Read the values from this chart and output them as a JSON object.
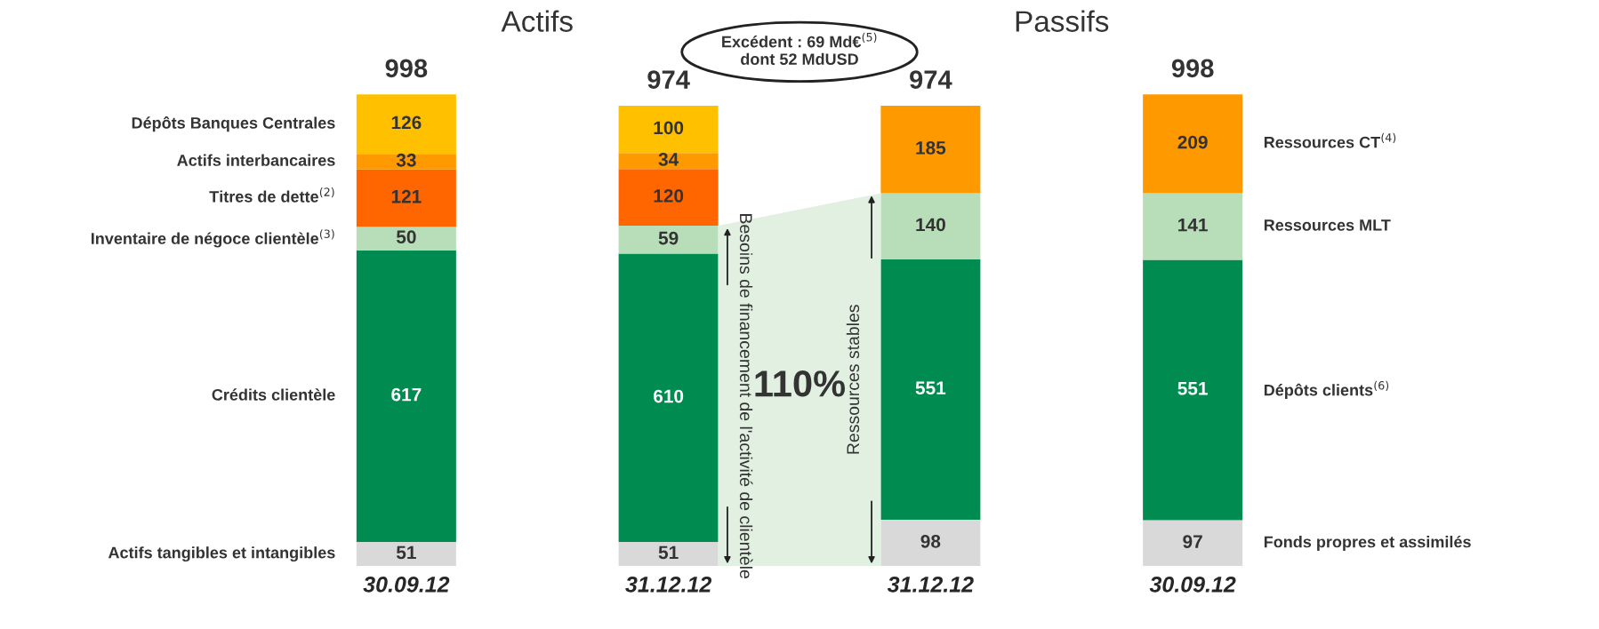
{
  "chart_data": {
    "type": "bar",
    "stacked": true,
    "data_labels": true,
    "categories": [
      "30.09.12",
      "31.12.12",
      "31.12.12",
      "30.09.12"
    ],
    "series": [
      {
        "name": "Actifs tangibles et intangibles",
        "color": "#d9d9d9",
        "values": [
          51,
          51,
          null,
          null
        ]
      },
      {
        "name": "Crédits clientèle",
        "color": "#008c50",
        "values": [
          617,
          610,
          null,
          null
        ]
      },
      {
        "name": "Inventaire de négoce clientèle$^{(3)}$",
        "color": "#b7deb8",
        "values": [
          50,
          59,
          null,
          null
        ]
      },
      {
        "name": "Titres de dette$^{(2)}$",
        "color": "#ff6600",
        "values": [
          121,
          120,
          null,
          null
        ]
      },
      {
        "name": "Actifs interbancaires",
        "color": "#ff9900",
        "values": [
          33,
          34,
          null,
          null
        ]
      },
      {
        "name": "Dépôts Banques Centrales",
        "color": "#ffc000",
        "values": [
          126,
          100,
          null,
          null
        ]
      },
      {
        "name": "Fonds propres et assimilés",
        "color": "#d9d9d9",
        "values": [
          null,
          null,
          98,
          97
        ]
      },
      {
        "name": "Dépôts clients$^{(6)}$",
        "color": "#008c50",
        "values": [
          null,
          null,
          551,
          551
        ]
      },
      {
        "name": "Ressources MLT",
        "color": "#b7deb8",
        "values": [
          null,
          null,
          140,
          141
        ]
      },
      {
        "name": "Ressources CT$^{(4)}$",
        "color": "#ff9900",
        "values": [
          null,
          null,
          185,
          209
        ]
      }
    ],
    "totals": [
      "998",
      "974",
      "974",
      "998"
    ],
    "annotations": [
      "Actifs",
      "Passifs",
      "Excédent : 69 Md€$^{(5)}$\ndont 52 MdUSD",
      "110%",
      "Besoins de financement de l'activité de clientèle",
      "Ressources stables"
    ]
  }
}
